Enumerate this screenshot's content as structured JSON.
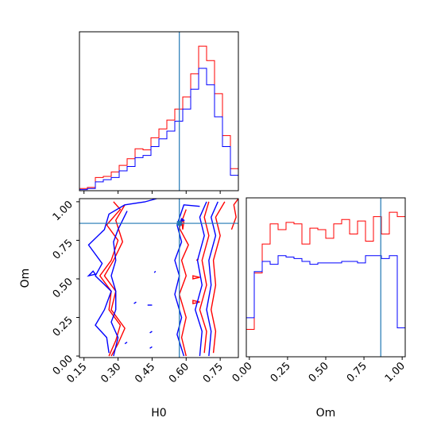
{
  "chart_data": {
    "type": "corner",
    "parameters": [
      "H0",
      "Om"
    ],
    "truths": {
      "H0": 0.57,
      "Om": 0.86
    },
    "truth_color": "#1f77b4",
    "series": [
      {
        "color": "#ff0000"
      },
      {
        "color": "#0000ff"
      }
    ],
    "panels": [
      {
        "id": "hist_H0",
        "type": "histogram",
        "parameter": "H0",
        "xlim": [
          0.13,
          0.83
        ],
        "bin_edges": [
          0.13,
          0.165,
          0.2,
          0.235,
          0.27,
          0.305,
          0.34,
          0.375,
          0.41,
          0.445,
          0.48,
          0.515,
          0.55,
          0.585,
          0.62,
          0.655,
          0.69,
          0.725,
          0.76,
          0.795,
          0.83
        ],
        "series": [
          {
            "counts": [
              2,
              3,
              12,
              13,
              17,
              23,
              29,
              38,
              37,
              48,
              56,
              64,
              74,
              85,
              106,
              131,
              118,
              88,
              50,
              20
            ]
          },
          {
            "counts": [
              1,
              2,
              8,
              10,
              12,
              18,
              22,
              30,
              32,
              40,
              47,
              54,
              63,
              74,
              92,
              111,
              96,
              67,
              40,
              14
            ]
          }
        ]
      },
      {
        "id": "hist_Om",
        "type": "histogram",
        "parameter": "Om",
        "xlim": [
          -0.02,
          1.02
        ],
        "bin_edges": [
          -0.02,
          0.032,
          0.084,
          0.136,
          0.188,
          0.24,
          0.292,
          0.344,
          0.396,
          0.448,
          0.5,
          0.552,
          0.604,
          0.656,
          0.708,
          0.76,
          0.812,
          0.864,
          0.916,
          0.968,
          1.02
        ],
        "series": [
          {
            "counts": [
              19,
              58,
              78,
              92,
              88,
              93,
              92,
              78,
              89,
              88,
              82,
              92,
              95,
              85,
              94,
              80,
              97,
              85,
              100,
              97
            ]
          },
          {
            "counts": [
              27,
              59,
              66,
              64,
              70,
              69,
              68,
              66,
              64,
              65,
              65,
              65,
              66,
              66,
              65,
              70,
              70,
              68,
              70,
              20
            ]
          }
        ]
      },
      {
        "id": "contour_H0_Om",
        "type": "contour",
        "x": "H0",
        "y": "Om",
        "xlim": [
          0.13,
          0.83
        ],
        "ylim": [
          -0.01,
          1.02
        ],
        "series": [
          {
            "contours": [
              [
                [
                  0.26,
                  0.0
                ],
                [
                  0.29,
                  0.1
                ],
                [
                  0.31,
                  0.2
                ],
                [
                  0.26,
                  0.3
                ],
                [
                  0.27,
                  0.42
                ],
                [
                  0.22,
                  0.52
                ],
                [
                  0.27,
                  0.62
                ],
                [
                  0.3,
                  0.75
                ],
                [
                  0.25,
                  0.85
                ],
                [
                  0.31,
                  0.95
                ],
                [
                  0.28,
                  1.0
                ]
              ],
              [
                [
                  0.27,
                  0.0
                ],
                [
                  0.3,
                  0.08
                ],
                [
                  0.33,
                  0.18
                ],
                [
                  0.27,
                  0.3
                ],
                [
                  0.29,
                  0.42
                ],
                [
                  0.24,
                  0.52
                ],
                [
                  0.28,
                  0.62
                ],
                [
                  0.32,
                  0.74
                ],
                [
                  0.29,
                  0.88
                ],
                [
                  0.33,
                  0.98
                ]
              ],
              [
                [
                  0.6,
                  0.0
                ],
                [
                  0.58,
                  0.12
                ],
                [
                  0.6,
                  0.25
                ],
                [
                  0.57,
                  0.4
                ],
                [
                  0.6,
                  0.52
                ],
                [
                  0.58,
                  0.62
                ],
                [
                  0.61,
                  0.72
                ],
                [
                  0.57,
                  0.83
                ],
                [
                  0.6,
                  0.95
                ]
              ],
              [
                [
                  0.68,
                  0.02
                ],
                [
                  0.69,
                  0.16
                ],
                [
                  0.66,
                  0.3
                ],
                [
                  0.69,
                  0.46
                ],
                [
                  0.67,
                  0.62
                ],
                [
                  0.7,
                  0.78
                ],
                [
                  0.68,
                  0.9
                ],
                [
                  0.7,
                  1.0
                ]
              ],
              [
                [
                  0.72,
                  0.02
                ],
                [
                  0.73,
                  0.16
                ],
                [
                  0.71,
                  0.3
                ],
                [
                  0.73,
                  0.46
                ],
                [
                  0.72,
                  0.62
                ],
                [
                  0.75,
                  0.78
                ],
                [
                  0.73,
                  0.9
                ],
                [
                  0.77,
                  1.0
                ]
              ],
              [
                [
                  0.8,
                  0.82
                ],
                [
                  0.82,
                  0.9
                ],
                [
                  0.81,
                  0.98
                ],
                [
                  0.83,
                  1.02
                ]
              ]
            ],
            "blobs": [
              [
                [
                  0.63,
                  0.5
                ],
                [
                  0.66,
                  0.51
                ],
                [
                  0.63,
                  0.52
                ]
              ],
              [
                [
                  0.63,
                  0.34
                ],
                [
                  0.66,
                  0.35
                ],
                [
                  0.63,
                  0.36
                ]
              ],
              [
                [
                  0.645,
                  0.62
                ],
                [
                  0.655,
                  0.63
                ]
              ],
              [
                [
                  0.585,
                  0.82
                ],
                [
                  0.59,
                  0.87
                ],
                [
                  0.58,
                  0.88
                ]
              ]
            ]
          },
          {
            "contours": [
              [
                [
                  0.26,
                  0.02
                ],
                [
                  0.25,
                  0.12
                ],
                [
                  0.2,
                  0.2
                ],
                [
                  0.24,
                  0.3
                ],
                [
                  0.27,
                  0.42
                ],
                [
                  0.2,
                  0.52
                ],
                [
                  0.23,
                  0.6
                ],
                [
                  0.17,
                  0.72
                ],
                [
                  0.24,
                  0.82
                ],
                [
                  0.26,
                  0.92
                ],
                [
                  0.33,
                  0.98
                ],
                [
                  0.42,
                  1.0
                ],
                [
                  0.47,
                  1.02
                ]
              ],
              [
                [
                  0.28,
                  0.0
                ],
                [
                  0.3,
                  0.12
                ],
                [
                  0.27,
                  0.22
                ],
                [
                  0.29,
                  0.3
                ],
                [
                  0.29,
                  0.42
                ],
                [
                  0.27,
                  0.52
                ],
                [
                  0.29,
                  0.62
                ],
                [
                  0.28,
                  0.74
                ],
                [
                  0.3,
                  0.82
                ],
                [
                  0.34,
                  0.94
                ]
              ],
              [
                [
                  0.59,
                  0.0
                ],
                [
                  0.56,
                  0.14
                ],
                [
                  0.58,
                  0.25
                ],
                [
                  0.55,
                  0.4
                ],
                [
                  0.57,
                  0.52
                ],
                [
                  0.55,
                  0.62
                ],
                [
                  0.58,
                  0.74
                ],
                [
                  0.56,
                  0.85
                ],
                [
                  0.59,
                  0.98
                ],
                [
                  0.66,
                  0.97
                ]
              ],
              [
                [
                  0.66,
                  0.0
                ],
                [
                  0.67,
                  0.16
                ],
                [
                  0.64,
                  0.3
                ],
                [
                  0.67,
                  0.46
                ],
                [
                  0.65,
                  0.62
                ],
                [
                  0.68,
                  0.78
                ],
                [
                  0.66,
                  0.9
                ],
                [
                  0.69,
                  1.0
                ]
              ],
              [
                [
                  0.7,
                  0.0
                ],
                [
                  0.71,
                  0.16
                ],
                [
                  0.69,
                  0.3
                ],
                [
                  0.71,
                  0.46
                ],
                [
                  0.7,
                  0.62
                ],
                [
                  0.73,
                  0.78
                ],
                [
                  0.71,
                  0.9
                ],
                [
                  0.74,
                  1.0
                ]
              ]
            ],
            "blobs": [
              [
                [
                  0.43,
                  0.33
                ],
                [
                  0.45,
                  0.33
                ]
              ],
              [
                [
                  0.37,
                  0.34
                ],
                [
                  0.38,
                  0.35
                ]
              ],
              [
                [
                  0.44,
                  0.15
                ],
                [
                  0.45,
                  0.16
                ]
              ],
              [
                [
                  0.44,
                  0.05
                ],
                [
                  0.45,
                  0.06
                ]
              ],
              [
                [
                  0.33,
                  0.08
                ],
                [
                  0.34,
                  0.09
                ]
              ],
              [
                [
                  0.17,
                  0.52
                ],
                [
                  0.19,
                  0.55
                ],
                [
                  0.2,
                  0.53
                ]
              ],
              [
                [
                  0.46,
                  0.54
                ],
                [
                  0.465,
                  0.55
                ]
              ],
              [
                [
                  0.575,
                  0.87
                ],
                [
                  0.59,
                  0.88
                ],
                [
                  0.58,
                  0.89
                ]
              ]
            ]
          }
        ]
      }
    ],
    "axes": {
      "H0": {
        "label": "H0",
        "ticks": [
          0.15,
          0.3,
          0.45,
          0.6,
          0.75
        ],
        "tick_labels": [
          "0.15",
          "0.30",
          "0.45",
          "0.60",
          "0.75"
        ]
      },
      "Om": {
        "label": "Om",
        "ticks": [
          0.0,
          0.25,
          0.5,
          0.75,
          1.0
        ],
        "tick_labels": [
          "0.00",
          "0.25",
          "0.50",
          "0.75",
          "1.00"
        ]
      }
    }
  }
}
